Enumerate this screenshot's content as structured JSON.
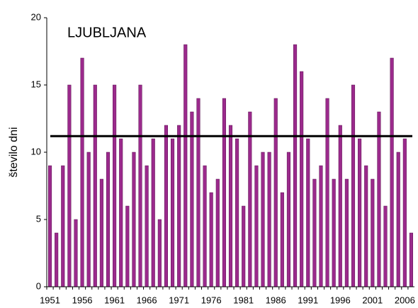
{
  "chart_data": {
    "type": "bar",
    "title": "LJUBLJANA",
    "y_label": "število dni",
    "categories": [
      "1951",
      null,
      null,
      null,
      null,
      "1956",
      null,
      null,
      null,
      null,
      "1961",
      null,
      null,
      null,
      null,
      "1966",
      null,
      null,
      null,
      null,
      "1971",
      null,
      null,
      null,
      null,
      "1976",
      null,
      null,
      null,
      null,
      "1981",
      null,
      null,
      null,
      null,
      "1986",
      null,
      null,
      null,
      null,
      "1991",
      null,
      null,
      null,
      null,
      "1996",
      null,
      null,
      null,
      null,
      "2001",
      null,
      null,
      null,
      null,
      "2006",
      null
    ],
    "values": [
      9,
      4,
      9,
      15,
      5,
      17,
      10,
      15,
      8,
      10,
      15,
      11,
      6,
      10,
      15,
      9,
      11,
      5,
      12,
      11,
      12,
      18,
      13,
      14,
      9,
      7,
      8,
      14,
      12,
      11,
      6,
      13,
      9,
      10,
      10,
      14,
      7,
      10,
      18,
      16,
      11,
      8,
      9,
      14,
      8,
      12,
      8,
      15,
      11,
      9,
      8,
      13,
      6,
      17,
      10,
      11,
      4
    ],
    "color": "#9b2a8c",
    "mean_line": 11.2,
    "mean_line_color": "#000000",
    "ylim": [
      0,
      20
    ],
    "yticks": [
      0,
      5,
      10,
      15,
      20
    ],
    "grid": false
  }
}
